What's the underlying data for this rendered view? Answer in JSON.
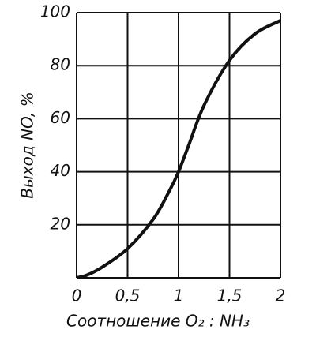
{
  "chart_data": {
    "type": "line",
    "x_label": "Соотношение O₂ : NH₃",
    "y_label": "Выход NO, %",
    "x": [
      0,
      0.1,
      0.25,
      0.5,
      0.75,
      0.9,
      1,
      1.1,
      1.25,
      1.5,
      1.75,
      2
    ],
    "values": [
      0,
      1,
      4,
      11,
      22,
      32,
      40,
      50,
      65,
      82,
      92,
      97
    ],
    "color": "#111111",
    "xlim": [
      0,
      2
    ],
    "xticks": [
      0,
      {
        "value": 0.5,
        "label": "0,5"
      },
      1,
      {
        "value": 1.5,
        "label": "1,5"
      },
      2
    ],
    "ylim": [
      0,
      100
    ],
    "yticks": [
      20,
      40,
      60,
      80,
      100
    ],
    "grid": true
  }
}
